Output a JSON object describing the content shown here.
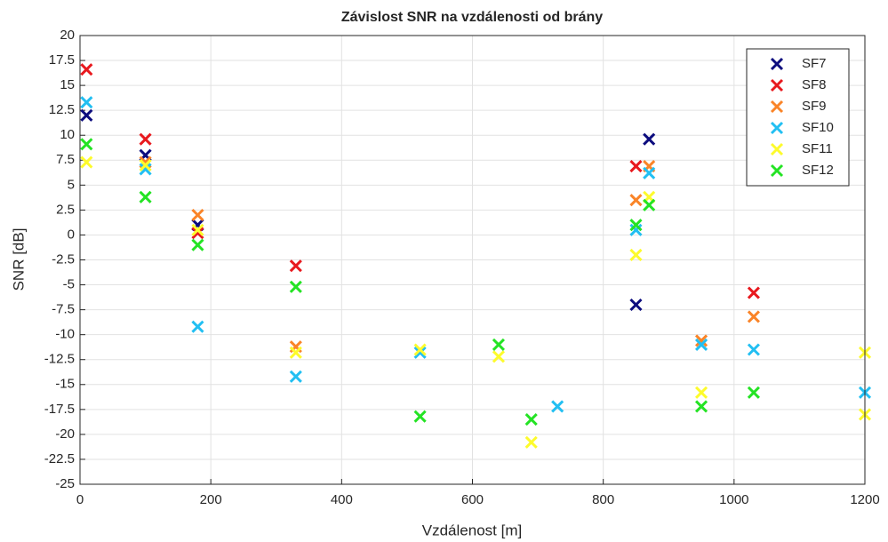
{
  "chart_data": {
    "type": "scatter",
    "title": "Závislost SNR na vzdálenosti od brány",
    "xlabel": "Vzdálenost [m]",
    "ylabel": "SNR [dB]",
    "xlim": [
      0,
      1200
    ],
    "xticks": [
      0,
      200,
      400,
      600,
      800,
      1000,
      1200
    ],
    "ylim": [
      -25,
      20
    ],
    "yticks": [
      -25,
      -22.5,
      -20,
      -17.5,
      -15,
      -12.5,
      -10,
      -7.5,
      -5,
      -2.5,
      0,
      2.5,
      5,
      7.5,
      10,
      12.5,
      15,
      17.5,
      20
    ],
    "grid": true,
    "legend": "northeast",
    "series": [
      {
        "name": "SF7",
        "color": "#0c0c7e",
        "x": [
          10,
          100,
          180,
          850,
          870
        ],
        "values": [
          12,
          8,
          1,
          -7,
          9.6
        ]
      },
      {
        "name": "SF8",
        "color": "#e8191e",
        "x": [
          10,
          100,
          180,
          330,
          850,
          1030
        ],
        "values": [
          16.6,
          9.6,
          0.2,
          -3.1,
          6.9,
          -5.8
        ]
      },
      {
        "name": "SF9",
        "color": "#fa8428",
        "x": [
          100,
          180,
          330,
          850,
          870,
          950,
          1030
        ],
        "values": [
          7.3,
          2,
          -11.2,
          3.5,
          6.9,
          -10.6,
          -8.2
        ]
      },
      {
        "name": "SF10",
        "color": "#22bff2",
        "x": [
          10,
          100,
          180,
          330,
          520,
          730,
          850,
          870,
          950,
          1030,
          1200
        ],
        "values": [
          13.3,
          6.6,
          -9.2,
          -14.2,
          -11.8,
          -17.2,
          0.5,
          6.2,
          -11,
          -11.5,
          -15.8
        ]
      },
      {
        "name": "SF11",
        "color": "#fdfb2c",
        "x": [
          10,
          100,
          180,
          330,
          520,
          640,
          690,
          850,
          870,
          950,
          1200,
          1200
        ],
        "values": [
          7.3,
          7,
          0.5,
          -11.8,
          -11.5,
          -12.2,
          -20.8,
          -2,
          3.8,
          -15.8,
          -11.8,
          -18
        ]
      },
      {
        "name": "SF12",
        "color": "#24e324",
        "x": [
          10,
          100,
          180,
          330,
          520,
          640,
          690,
          850,
          870,
          950,
          1030
        ],
        "values": [
          9.1,
          3.8,
          -1,
          -5.2,
          -18.2,
          -11,
          -18.5,
          1,
          3,
          -17.2,
          -15.8
        ]
      }
    ]
  }
}
